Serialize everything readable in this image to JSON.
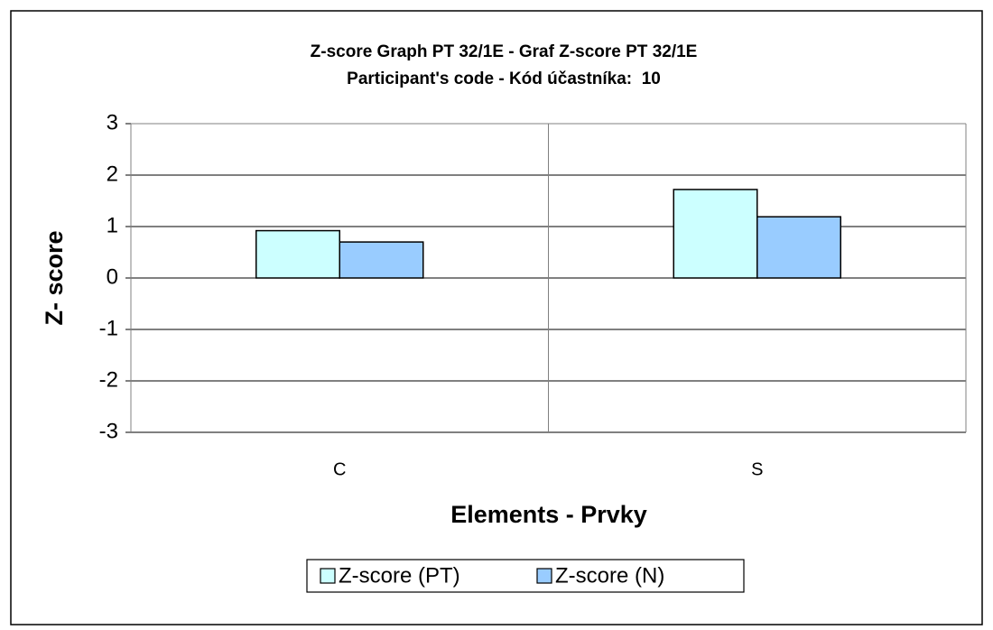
{
  "chart_data": {
    "type": "bar",
    "title": "Z-score Graph PT 32/1E - Graf Z-score PT 32/1E",
    "subtitle": "Participant's code - Kód účastníka:  10",
    "xlabel": "Elements - Prvky",
    "ylabel": "Z- score",
    "categories": [
      "C",
      "S"
    ],
    "series": [
      {
        "name": "Z-score (PT)",
        "color": "#ccffff",
        "values": [
          0.92,
          1.72
        ]
      },
      {
        "name": "Z-score (N)",
        "color": "#99ccff",
        "values": [
          0.7,
          1.19
        ]
      }
    ],
    "ylim": [
      -3,
      3
    ],
    "yticks": [
      -3,
      -2,
      -1,
      0,
      1,
      2,
      3
    ],
    "grid": true,
    "legend": "bottom"
  }
}
